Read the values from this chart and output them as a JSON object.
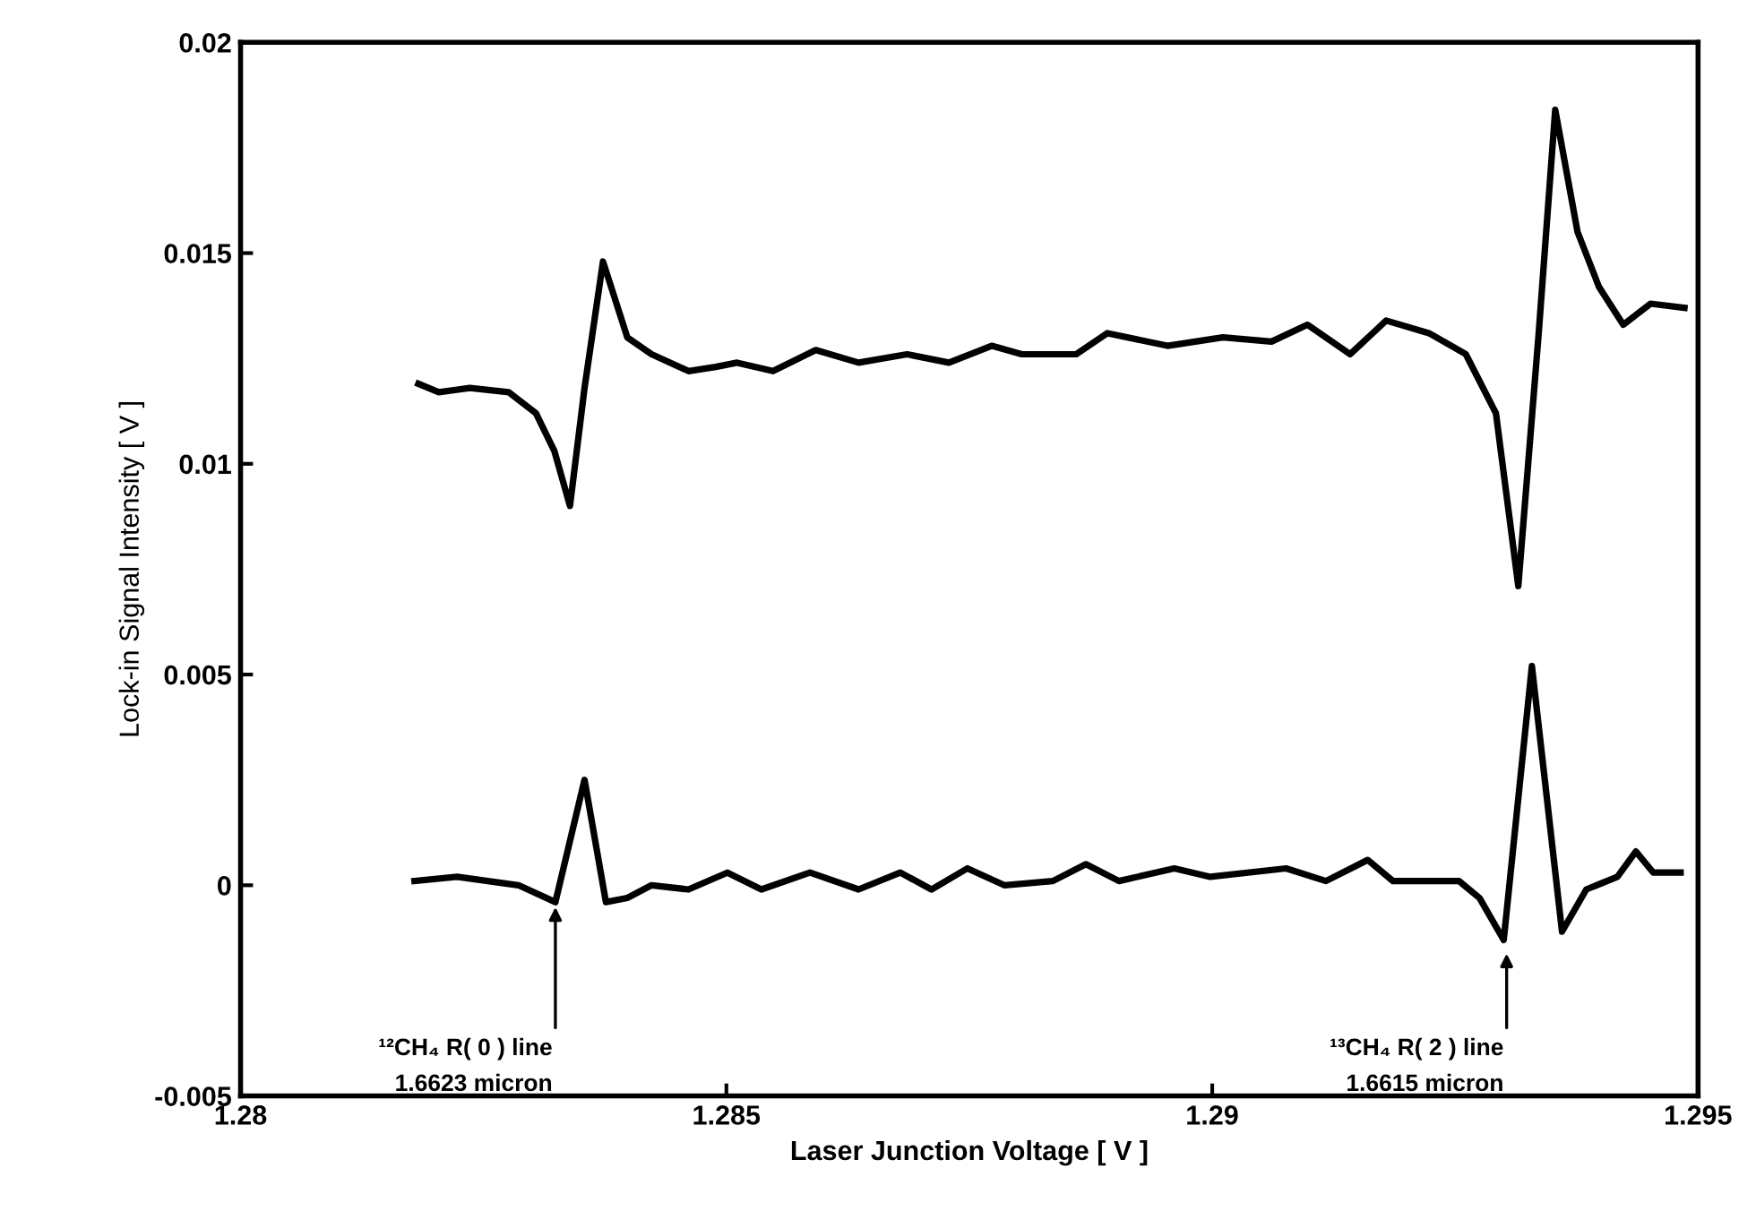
{
  "chart_data": {
    "type": "line",
    "xlabel": "Laser Junction Voltage [ V ]",
    "ylabel": "Lock-in Signal Intensity [ V ]",
    "xlim": [
      1.28,
      1.295
    ],
    "xticks": [
      1.28,
      1.285,
      1.29,
      1.295
    ],
    "ylim": [
      -0.005,
      0.02
    ],
    "yticks": [
      -0.005,
      0,
      0.005,
      0.01,
      0.015,
      0.02
    ],
    "grid": false,
    "legend": false,
    "marker": "none",
    "line_style": "solid",
    "series": [
      {
        "color": "#000000",
        "x": [
          1.28183,
          1.28204,
          1.28236,
          1.28276,
          1.28304,
          1.28323,
          1.28339,
          1.28354,
          1.28373,
          1.28398,
          1.28423,
          1.28461,
          1.28489,
          1.28511,
          1.28548,
          1.28592,
          1.28636,
          1.28686,
          1.28729,
          1.28773,
          1.28804,
          1.2886,
          1.28892,
          1.28954,
          1.29011,
          1.29061,
          1.29098,
          1.29142,
          1.29179,
          1.29223,
          1.29261,
          1.29292,
          1.29315,
          1.29336,
          1.29353,
          1.29376,
          1.29398,
          1.29423,
          1.29451,
          1.29486
        ],
        "values": [
          0.0119,
          0.0117,
          0.0118,
          0.0117,
          0.0112,
          0.0103,
          0.009,
          0.0118,
          0.0148,
          0.013,
          0.0126,
          0.0122,
          0.0123,
          0.0124,
          0.0122,
          0.0127,
          0.0124,
          0.0126,
          0.0124,
          0.0128,
          0.0126,
          0.0126,
          0.0131,
          0.0128,
          0.013,
          0.0129,
          0.0133,
          0.0126,
          0.0134,
          0.0131,
          0.0126,
          0.0112,
          0.0071,
          0.0131,
          0.0184,
          0.0155,
          0.0142,
          0.0133,
          0.0138,
          0.0137
        ]
      },
      {
        "color": "#000000",
        "x": [
          1.28179,
          1.28223,
          1.28286,
          1.28324,
          1.28354,
          1.28376,
          1.28398,
          1.28423,
          1.28461,
          1.28501,
          1.28536,
          1.28586,
          1.28636,
          1.28679,
          1.28711,
          1.28748,
          1.28786,
          1.28836,
          1.2887,
          1.28904,
          1.28961,
          1.28998,
          1.29076,
          1.29117,
          1.2916,
          1.29186,
          1.29254,
          1.29275,
          1.293,
          1.29329,
          1.2936,
          1.29385,
          1.29417,
          1.29436,
          1.29454,
          1.29482
        ],
        "values": [
          0.0001,
          0.0002,
          0.0,
          -0.0004,
          0.0025,
          -0.0004,
          -0.0003,
          0.0,
          -0.0001,
          0.0003,
          -0.0001,
          0.0003,
          -0.0001,
          0.0003,
          -0.0001,
          0.0004,
          0.0,
          0.0001,
          0.0005,
          0.0001,
          0.0004,
          0.0002,
          0.0004,
          0.0001,
          0.0006,
          0.0001,
          0.0001,
          -0.0003,
          -0.0013,
          0.0052,
          -0.0011,
          -0.0001,
          0.0002,
          0.0008,
          0.0003,
          0.0003
        ]
      }
    ],
    "annotations": [
      {
        "text": "¹²CH₄ R( 0 ) line\n1.6623 micron",
        "x": 1.28324,
        "y": -0.0004
      },
      {
        "text": "¹³CH₄ R( 2 ) line\n1.6615 micron",
        "x": 1.29303,
        "y": -0.0015
      }
    ]
  }
}
